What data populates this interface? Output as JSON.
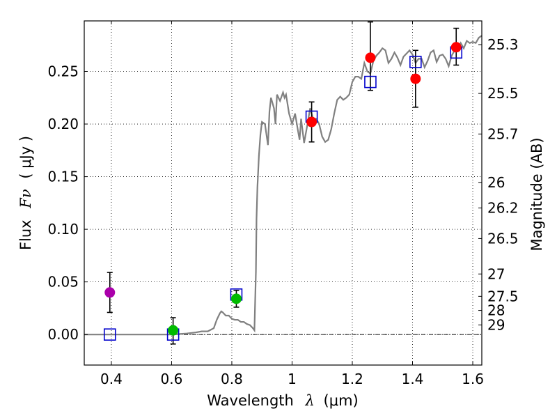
{
  "chart_data": {
    "type": "scatter",
    "xlabel_text": "Wavelength",
    "xlabel_symbol": "λ",
    "xlabel_unit": "(μm)",
    "ylabel_text": "Flux",
    "ylabel_symbol": "Fν",
    "ylabel_unit": "( μJy )",
    "y2label": "Magnitude (AB)",
    "xlim": [
      0.31,
      1.63
    ],
    "ylim": [
      -0.029,
      0.298
    ],
    "x_ticks": [
      0.4,
      0.6,
      0.8,
      1.0,
      1.2,
      1.4,
      1.6
    ],
    "x_tick_labels": [
      "0.4",
      "0.6",
      "0.8",
      "1",
      "1.2",
      "1.4",
      "1.6"
    ],
    "y_ticks": [
      0.0,
      0.05,
      0.1,
      0.15,
      0.2,
      0.25
    ],
    "y_tick_labels": [
      "0.00",
      "0.05",
      "0.10",
      "0.15",
      "0.20",
      "0.25"
    ],
    "grid": true,
    "zero_line": true,
    "magnitude_ticks": [
      {
        "label": "25.3",
        "mag": 25.3
      },
      {
        "label": "25.5",
        "mag": 25.5
      },
      {
        "label": "25.7",
        "mag": 25.7
      },
      {
        "label": "26",
        "mag": 26.0
      },
      {
        "label": "26.2",
        "mag": 26.2
      },
      {
        "label": "26.5",
        "mag": 26.5
      },
      {
        "label": "27",
        "mag": 27.0
      },
      {
        "label": "27.5",
        "mag": 27.5
      },
      {
        "label": "28",
        "mag": 28.0
      },
      {
        "label": "29",
        "mag": 29.0
      }
    ],
    "sed_model": {
      "name": "model spectrum",
      "color": "#808080",
      "x": [
        0.31,
        0.35,
        0.4,
        0.45,
        0.5,
        0.55,
        0.6,
        0.65,
        0.68,
        0.7,
        0.72,
        0.74,
        0.75,
        0.76,
        0.765,
        0.77,
        0.78,
        0.79,
        0.8,
        0.81,
        0.82,
        0.83,
        0.84,
        0.85,
        0.86,
        0.87,
        0.875,
        0.88,
        0.882,
        0.885,
        0.89,
        0.895,
        0.9,
        0.91,
        0.92,
        0.925,
        0.93,
        0.94,
        0.945,
        0.95,
        0.96,
        0.97,
        0.975,
        0.98,
        0.99,
        1.0,
        1.01,
        1.02,
        1.025,
        1.03,
        1.04,
        1.05,
        1.06,
        1.07,
        1.08,
        1.09,
        1.1,
        1.11,
        1.12,
        1.13,
        1.14,
        1.15,
        1.16,
        1.17,
        1.18,
        1.19,
        1.2,
        1.21,
        1.22,
        1.23,
        1.24,
        1.25,
        1.26,
        1.27,
        1.28,
        1.29,
        1.3,
        1.31,
        1.32,
        1.33,
        1.34,
        1.35,
        1.36,
        1.37,
        1.38,
        1.39,
        1.4,
        1.41,
        1.42,
        1.43,
        1.44,
        1.45,
        1.46,
        1.47,
        1.48,
        1.49,
        1.5,
        1.51,
        1.52,
        1.53,
        1.54,
        1.55,
        1.56,
        1.57,
        1.58,
        1.59,
        1.6,
        1.61,
        1.62,
        1.63
      ],
      "y": [
        0.0,
        0.0,
        0.0,
        0.0,
        0.0,
        0.0,
        0.0,
        0.001,
        0.002,
        0.003,
        0.003,
        0.006,
        0.014,
        0.02,
        0.022,
        0.021,
        0.018,
        0.018,
        0.015,
        0.014,
        0.014,
        0.012,
        0.012,
        0.01,
        0.009,
        0.006,
        0.004,
        0.06,
        0.11,
        0.14,
        0.17,
        0.19,
        0.202,
        0.2,
        0.18,
        0.212,
        0.225,
        0.215,
        0.2,
        0.228,
        0.222,
        0.23,
        0.225,
        0.228,
        0.21,
        0.2,
        0.21,
        0.193,
        0.185,
        0.205,
        0.182,
        0.198,
        0.215,
        0.205,
        0.205,
        0.2,
        0.188,
        0.183,
        0.185,
        0.195,
        0.21,
        0.223,
        0.226,
        0.223,
        0.225,
        0.228,
        0.24,
        0.245,
        0.245,
        0.243,
        0.258,
        0.25,
        0.248,
        0.26,
        0.265,
        0.268,
        0.272,
        0.27,
        0.258,
        0.262,
        0.268,
        0.263,
        0.256,
        0.264,
        0.267,
        0.27,
        0.266,
        0.258,
        0.262,
        0.262,
        0.254,
        0.26,
        0.268,
        0.27,
        0.259,
        0.265,
        0.266,
        0.262,
        0.255,
        0.265,
        0.27,
        0.27,
        0.277,
        0.272,
        0.279,
        0.277,
        0.278,
        0.277,
        0.282,
        0.284
      ]
    },
    "model_photometry": {
      "name": "model photometry (open squares)",
      "color": "#0000cc",
      "points": [
        {
          "x": 0.395,
          "y": 0.0
        },
        {
          "x": 0.605,
          "y": 0.0
        },
        {
          "x": 0.815,
          "y": 0.038
        },
        {
          "x": 1.065,
          "y": 0.207
        },
        {
          "x": 1.26,
          "y": 0.24
        },
        {
          "x": 1.41,
          "y": 0.259
        },
        {
          "x": 1.545,
          "y": 0.268
        }
      ]
    },
    "observed_photometry": {
      "name": "observed photometry (filled circles)",
      "points": [
        {
          "x": 0.395,
          "y": 0.04,
          "yerr_low": 0.019,
          "yerr_high": 0.019,
          "color": "#aa00aa"
        },
        {
          "x": 0.605,
          "y": 0.004,
          "yerr_low": 0.013,
          "yerr_high": 0.012,
          "color": "#00bb00"
        },
        {
          "x": 0.815,
          "y": 0.034,
          "yerr_low": 0.008,
          "yerr_high": 0.008,
          "color": "#00bb00"
        },
        {
          "x": 1.065,
          "y": 0.202,
          "yerr_low": 0.019,
          "yerr_high": 0.019,
          "color": "#ff0000"
        },
        {
          "x": 1.26,
          "y": 0.263,
          "yerr_low": 0.031,
          "yerr_high": 0.034,
          "color": "#ff0000"
        },
        {
          "x": 1.41,
          "y": 0.243,
          "yerr_low": 0.027,
          "yerr_high": 0.027,
          "color": "#ff0000"
        },
        {
          "x": 1.545,
          "y": 0.273,
          "yerr_low": 0.017,
          "yerr_high": 0.018,
          "color": "#ff0000"
        }
      ]
    }
  }
}
